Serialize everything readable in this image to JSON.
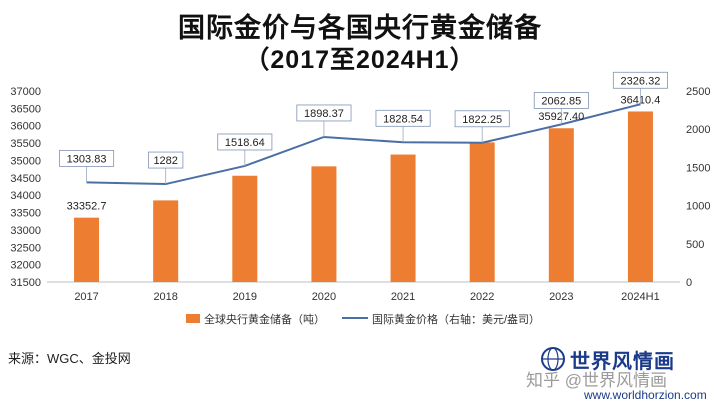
{
  "title_line1": "国际金价与各国央行黄金储备",
  "title_line2": "（2017至2024H1）",
  "chart_data": {
    "type": "bar",
    "categories": [
      "2017",
      "2018",
      "2019",
      "2020",
      "2021",
      "2022",
      "2023",
      "2024H1"
    ],
    "series": [
      {
        "name": "全球央行黄金储备（吨）",
        "kind": "bar",
        "axis": "left",
        "color": "#ED7D31",
        "values": [
          33352.7,
          33850,
          34560,
          34830,
          35170,
          35520,
          35927.4,
          36410.4
        ],
        "labels": [
          "33352.7",
          "",
          "",
          "",
          "",
          "",
          "35927.40",
          "36410.4"
        ]
      },
      {
        "name": "国际黄金价格（右轴：美元/盎司）",
        "kind": "line",
        "axis": "right",
        "color": "#4A6FA5",
        "values": [
          1303.83,
          1282,
          1518.64,
          1898.37,
          1828.54,
          1822.25,
          2062.85,
          2326.32
        ],
        "labels": [
          "1303.83",
          "1282",
          "1518.64",
          "1898.37",
          "1828.54",
          "1822.25",
          "2062.85",
          "2326.32"
        ]
      }
    ],
    "y_left": {
      "min": 31500,
      "max": 37000,
      "step": 500
    },
    "y_right": {
      "min": 0,
      "max": 2500,
      "step": 500
    },
    "legend_position": "bottom",
    "grid": false
  },
  "source": "来源：WGC、金投网",
  "brand_name": "世界风情画",
  "brand_url": "www.worldhorzion.com",
  "watermark": "知乎 @世界风情画"
}
